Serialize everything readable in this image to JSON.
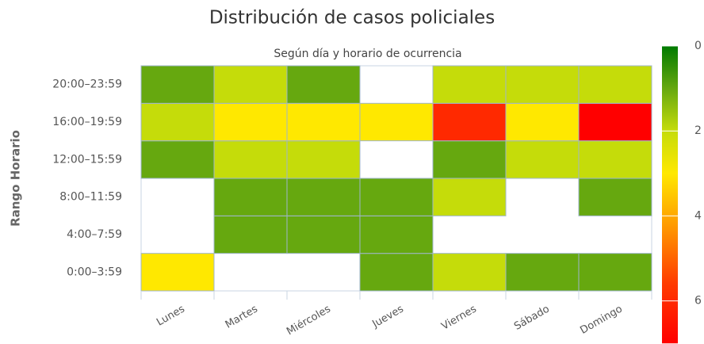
{
  "chart_data": {
    "type": "heatmap",
    "title": "Distribución de casos policiales",
    "subtitle": "Según día y horario de ocurrencia",
    "y_label": "Rango Horario",
    "x": [
      "Lunes",
      "Martes",
      "Miércoles",
      "Jueves",
      "Viernes",
      "Sábado",
      "Domingo"
    ],
    "y": [
      "0:00–3:59",
      "4:00–7:59",
      "8:00–11:59",
      "12:00–15:59",
      "16:00–19:59",
      "20:00–23:59"
    ],
    "z": [
      [
        3,
        null,
        null,
        1,
        2,
        1,
        1
      ],
      [
        null,
        1,
        1,
        1,
        null,
        null,
        null
      ],
      [
        null,
        1,
        1,
        1,
        2,
        null,
        1
      ],
      [
        1,
        2,
        2,
        null,
        1,
        2,
        2
      ],
      [
        2,
        3,
        3,
        3,
        6,
        3,
        7
      ],
      [
        1,
        2,
        1,
        null,
        2,
        2,
        2
      ]
    ],
    "zlim": [
      0,
      7
    ],
    "zticks": [
      0,
      2,
      4,
      6
    ],
    "colorscale": [
      [
        0,
        "#007a00"
      ],
      [
        1,
        "#66a80f"
      ],
      [
        2,
        "#c5dc0a"
      ],
      [
        3,
        "#ffe800"
      ],
      [
        4.3,
        "#ff9500"
      ],
      [
        5.6,
        "#ff3a00"
      ],
      [
        7,
        "#ff0000"
      ]
    ]
  }
}
